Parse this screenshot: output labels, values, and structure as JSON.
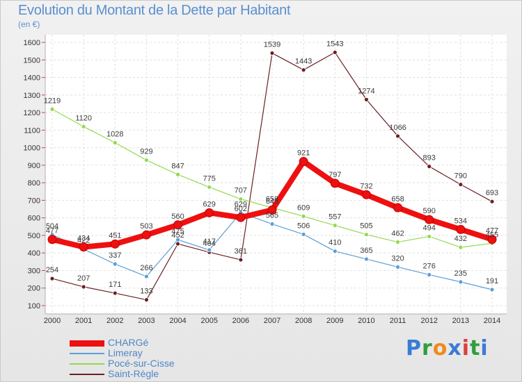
{
  "title": "Evolution du Montant de la Dette par Habitant",
  "subtitle": "(en €)",
  "brand": {
    "text": "Proxiti",
    "letter_colors": [
      "#3a7bd5",
      "#2e9e3e",
      "#f08a1c",
      "#3a7bd5",
      "#d94040",
      "#2e9e3e",
      "#3a7bd5"
    ]
  },
  "chart_data": {
    "type": "line",
    "x": [
      2000,
      2001,
      2002,
      2003,
      2004,
      2005,
      2006,
      2007,
      2008,
      2009,
      2010,
      2011,
      2012,
      2013,
      2014
    ],
    "ylim": [
      100,
      1600
    ],
    "yticks": [
      100,
      200,
      300,
      400,
      500,
      600,
      700,
      800,
      900,
      1000,
      1100,
      1200,
      1300,
      1400,
      1500,
      1600
    ],
    "grid": true,
    "legend_position": "bottom-left",
    "series": [
      {
        "name": "Saint-Règle",
        "color": "#6b1f24",
        "width": 1.2,
        "marker_r": 3,
        "values": [
          254,
          207,
          171,
          133,
          452,
          404,
          361,
          1539,
          1443,
          1543,
          1274,
          1066,
          893,
          790,
          693
        ]
      },
      {
        "name": "Limeray",
        "color": "#5c9fd6",
        "width": 1.2,
        "marker_r": 3,
        "values": [
          504,
          422,
          337,
          266,
          475,
          417,
          629,
          565,
          506,
          410,
          365,
          320,
          276,
          235,
          191
        ]
      },
      {
        "name": "Pocé-sur-Cisse",
        "color": "#93d94e",
        "width": 1.2,
        "marker_r": 3,
        "values": [
          1219,
          1120,
          1028,
          929,
          847,
          775,
          707,
          658,
          609,
          557,
          505,
          462,
          494,
          432,
          455
        ]
      },
      {
        "name": "CHARGé",
        "color": "#ee1010",
        "width": 8,
        "marker_r": 6,
        "values": [
          477,
          434,
          451,
          503,
          560,
          629,
          602,
          645,
          921,
          797,
          732,
          658,
          590,
          534,
          477
        ]
      }
    ],
    "legend": [
      "CHARGé",
      "Limeray",
      "Pocé-sur-Cisse",
      "Saint-Règle"
    ]
  }
}
